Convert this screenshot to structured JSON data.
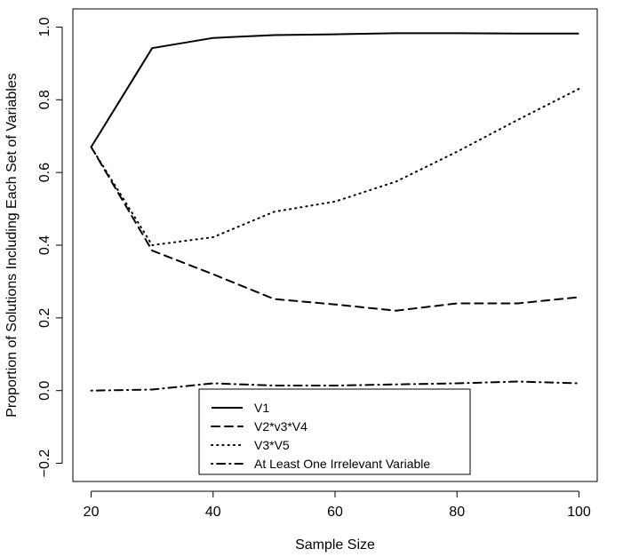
{
  "chart_data": {
    "type": "line",
    "title": "",
    "xlabel": "Sample Size",
    "ylabel": "Proportion of Solutions Including Each Set of Variables",
    "xlim": [
      17,
      103
    ],
    "ylim": [
      -0.25,
      1.05
    ],
    "xticks": [
      20,
      40,
      60,
      80,
      100
    ],
    "xtick_labels": [
      "20",
      "40",
      "60",
      "80",
      "100"
    ],
    "yticks": [
      -0.2,
      0.0,
      0.2,
      0.4,
      0.6,
      0.8,
      1.0
    ],
    "ytick_labels": [
      "−0.2",
      "0.0",
      "0.2",
      "0.4",
      "0.6",
      "0.8",
      "1.0"
    ],
    "grid": false,
    "legend_position": "bottom-center",
    "x": [
      20,
      30,
      40,
      50,
      60,
      70,
      80,
      90,
      100
    ],
    "series": [
      {
        "name": "V1",
        "style": "solid",
        "values": [
          0.67,
          0.942,
          0.97,
          0.978,
          0.98,
          0.983,
          0.983,
          0.982,
          0.982
        ]
      },
      {
        "name": "V2*v3*V4",
        "style": "dashed",
        "values": [
          0.67,
          0.385,
          0.32,
          0.252,
          0.237,
          0.22,
          0.24,
          0.24,
          0.257
        ]
      },
      {
        "name": "V3*V5",
        "style": "dotted",
        "values": [
          0.67,
          0.4,
          0.422,
          0.492,
          0.52,
          0.575,
          0.657,
          0.745,
          0.83
        ]
      },
      {
        "name": "At Least One Irrelevant Variable",
        "style": "dotdash",
        "values": [
          0.0,
          0.003,
          0.02,
          0.014,
          0.014,
          0.017,
          0.02,
          0.025,
          0.02
        ]
      }
    ]
  }
}
